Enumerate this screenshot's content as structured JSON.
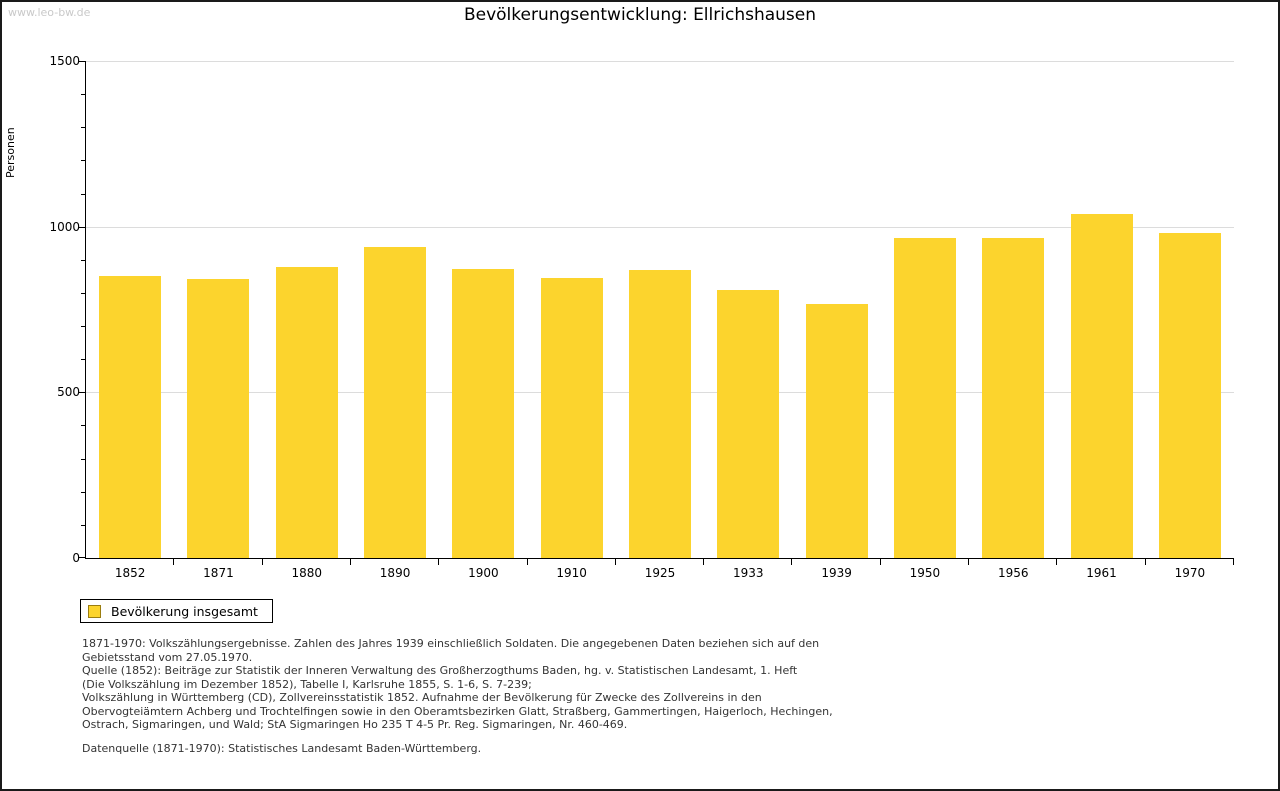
{
  "watermark": "www.leo-bw.de",
  "title": "Bevölkerungsentwicklung: Ellrichshausen",
  "chart_data": {
    "type": "bar",
    "title": "Bevölkerungsentwicklung: Ellrichshausen",
    "xlabel": "",
    "ylabel": "Personen",
    "categories": [
      "1852",
      "1871",
      "1880",
      "1890",
      "1900",
      "1910",
      "1925",
      "1933",
      "1939",
      "1950",
      "1956",
      "1961",
      "1970"
    ],
    "series": [
      {
        "name": "Bevölkerung insgesamt",
        "values": [
          852,
          841,
          879,
          938,
          872,
          845,
          870,
          810,
          768,
          967,
          967,
          1038,
          982
        ]
      }
    ],
    "ylim": [
      0,
      1500
    ],
    "yticks_major": [
      0,
      500,
      1000,
      1500
    ],
    "ytick_minor_step": 100,
    "grid": "horizontal-at-500-1000-1500",
    "legend_position": "bottom-left",
    "colors": {
      "bar_fill": "#fcd42d",
      "gridline": "#dcdcdc",
      "axis": "#000000"
    }
  },
  "legend": {
    "label": "Bevölkerung insgesamt",
    "swatch_color": "#fcd42d",
    "swatch_border": "#9a7d10"
  },
  "footer": {
    "lines": [
      "1871-1970: Volkszählungsergebnisse. Zahlen des Jahres 1939 einschließlich Soldaten. Die angegebenen Daten beziehen sich auf den",
      "Gebietsstand vom 27.05.1970.",
      "Quelle (1852): Beiträge zur Statistik der Inneren Verwaltung des Großherzogthums Baden, hg. v. Statistischen Landesamt, 1. Heft",
      "(Die Volkszählung im Dezember 1852), Tabelle I, Karlsruhe 1855, S. 1-6, S. 7-239;",
      "Volkszählung in Württemberg (CD), Zollvereinsstatistik 1852. Aufnahme der Bevölkerung für Zwecke des Zollvereins in den",
      "Obervogteiämtern Achberg und Trochtelfingen sowie in den Oberamtsbezirken Glatt, Straßberg, Gammertingen, Haigerloch, Hechingen,",
      "Ostrach, Sigmaringen, und Wald; StA Sigmaringen Ho 235 T 4-5 Pr. Reg. Sigmaringen, Nr. 460-469."
    ],
    "datasource": "Datenquelle (1871-1970): Statistisches Landesamt Baden-Württemberg."
  }
}
